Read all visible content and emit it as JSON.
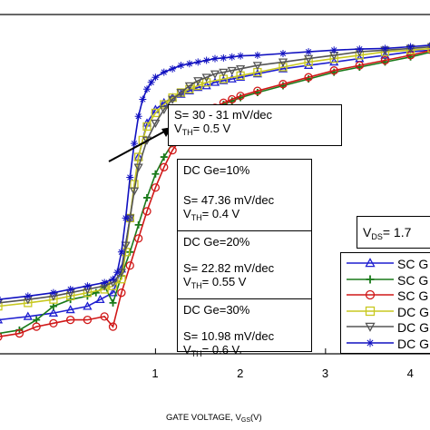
{
  "chart_data": {
    "type": "line",
    "title": "",
    "xlabel": "GATE VOLTAGE, V",
    "xlabel_sub": "GS",
    "xlabel_unit": "(V)",
    "ylabel": "",
    "xlim": [
      -0.85,
      4.25
    ],
    "ylim": [
      0,
      1
    ],
    "x_ticks": [
      1,
      2,
      3,
      4
    ],
    "grid": false,
    "legend_placement": "bottom-right",
    "series": [
      {
        "name": "SC G",
        "color": "#1f1fd0",
        "marker": "triangle-up",
        "x": [
          -0.85,
          -0.5,
          -0.2,
          0.0,
          0.2,
          0.35,
          0.5,
          0.6,
          0.7,
          0.8,
          0.9,
          1.0,
          1.1,
          1.2,
          1.3,
          1.4,
          1.5,
          1.6,
          1.7,
          1.8,
          1.9,
          2.0,
          2.2,
          2.5,
          2.8,
          3.1,
          3.4,
          3.7,
          4.0,
          4.25
        ],
        "y": [
          0.1,
          0.11,
          0.12,
          0.13,
          0.14,
          0.16,
          0.18,
          0.25,
          0.4,
          0.58,
          0.68,
          0.72,
          0.74,
          0.755,
          0.765,
          0.775,
          0.785,
          0.79,
          0.8,
          0.805,
          0.81,
          0.815,
          0.825,
          0.84,
          0.85,
          0.86,
          0.87,
          0.88,
          0.89,
          0.895
        ]
      },
      {
        "name": "SC G",
        "color": "#1a7a1a",
        "marker": "plus",
        "x": [
          -0.85,
          -0.6,
          -0.4,
          -0.2,
          0.0,
          0.2,
          0.3,
          0.4,
          0.5,
          0.6,
          0.7,
          0.8,
          0.9,
          1.0,
          1.1,
          1.2,
          1.3,
          1.4,
          1.5,
          1.6,
          1.7,
          1.8,
          1.9,
          2.0,
          2.2,
          2.5,
          2.8,
          3.1,
          3.4,
          3.7,
          4.0,
          4.25
        ],
        "y": [
          0.06,
          0.07,
          0.1,
          0.14,
          0.16,
          0.17,
          0.18,
          0.2,
          0.15,
          0.23,
          0.3,
          0.38,
          0.46,
          0.53,
          0.58,
          0.62,
          0.65,
          0.675,
          0.695,
          0.71,
          0.725,
          0.735,
          0.745,
          0.755,
          0.77,
          0.79,
          0.81,
          0.83,
          0.845,
          0.86,
          0.875,
          0.89
        ]
      },
      {
        "name": "SC G",
        "color": "#d01818",
        "marker": "circle",
        "x": [
          -0.85,
          -0.6,
          -0.4,
          -0.2,
          0.0,
          0.2,
          0.4,
          0.5,
          0.6,
          0.7,
          0.8,
          0.9,
          1.0,
          1.1,
          1.2,
          1.3,
          1.4,
          1.5,
          1.6,
          1.7,
          1.8,
          1.9,
          2.0,
          2.2,
          2.5,
          2.8,
          3.1,
          3.4,
          3.7,
          4.0,
          4.25
        ],
        "y": [
          0.05,
          0.06,
          0.08,
          0.09,
          0.1,
          0.1,
          0.11,
          0.08,
          0.18,
          0.26,
          0.34,
          0.42,
          0.49,
          0.55,
          0.6,
          0.635,
          0.665,
          0.69,
          0.71,
          0.725,
          0.74,
          0.75,
          0.76,
          0.775,
          0.795,
          0.815,
          0.835,
          0.85,
          0.865,
          0.88,
          0.895
        ]
      },
      {
        "name": "DC G",
        "color": "#c8c820",
        "marker": "square",
        "x": [
          -0.85,
          -0.5,
          -0.2,
          0.0,
          0.2,
          0.4,
          0.5,
          0.6,
          0.65,
          0.7,
          0.75,
          0.8,
          0.85,
          0.9,
          1.0,
          1.1,
          1.2,
          1.3,
          1.4,
          1.5,
          1.6,
          1.8,
          2.0,
          2.2,
          2.5,
          2.8,
          3.1,
          3.4,
          3.7,
          4.0,
          4.25
        ],
        "y": [
          0.14,
          0.15,
          0.16,
          0.17,
          0.18,
          0.19,
          0.2,
          0.22,
          0.3,
          0.4,
          0.5,
          0.58,
          0.63,
          0.67,
          0.71,
          0.735,
          0.755,
          0.77,
          0.78,
          0.79,
          0.8,
          0.81,
          0.82,
          0.83,
          0.845,
          0.86,
          0.87,
          0.88,
          0.89,
          0.895,
          0.9
        ]
      },
      {
        "name": "DC G",
        "color": "#555555",
        "marker": "triangle-down",
        "x": [
          -0.85,
          -0.5,
          -0.2,
          0.0,
          0.2,
          0.4,
          0.5,
          0.6,
          0.65,
          0.7,
          0.75,
          0.8,
          0.9,
          1.0,
          1.1,
          1.2,
          1.3,
          1.4,
          1.5,
          1.6,
          1.7,
          1.8,
          1.9,
          2.0,
          2.2,
          2.5,
          2.8,
          3.1,
          3.4,
          3.7,
          4.0,
          4.25
        ],
        "y": [
          0.15,
          0.16,
          0.17,
          0.18,
          0.19,
          0.2,
          0.21,
          0.24,
          0.32,
          0.4,
          0.48,
          0.55,
          0.63,
          0.68,
          0.72,
          0.75,
          0.77,
          0.79,
          0.805,
          0.815,
          0.825,
          0.83,
          0.835,
          0.84,
          0.85,
          0.86,
          0.87,
          0.88,
          0.89,
          0.895,
          0.9,
          0.905
        ]
      },
      {
        "name": "DC G",
        "color": "#1010c0",
        "marker": "star",
        "x": [
          -0.85,
          -0.5,
          -0.2,
          0.0,
          0.2,
          0.4,
          0.5,
          0.55,
          0.6,
          0.65,
          0.7,
          0.75,
          0.8,
          0.85,
          0.9,
          0.95,
          1.0,
          1.1,
          1.2,
          1.3,
          1.4,
          1.5,
          1.6,
          1.7,
          1.8,
          1.9,
          2.0,
          2.2,
          2.5,
          2.8,
          3.1,
          3.4,
          3.7,
          4.0,
          4.25
        ],
        "y": [
          0.16,
          0.17,
          0.18,
          0.19,
          0.2,
          0.21,
          0.22,
          0.24,
          0.3,
          0.4,
          0.52,
          0.62,
          0.7,
          0.75,
          0.78,
          0.8,
          0.815,
          0.83,
          0.84,
          0.85,
          0.855,
          0.86,
          0.865,
          0.87,
          0.872,
          0.875,
          0.878,
          0.88,
          0.885,
          0.89,
          0.895,
          0.898,
          0.9,
          0.905,
          0.91
        ]
      }
    ],
    "annotations": [
      {
        "id": "ann1",
        "lines": [
          {
            "text": "S= 30 - 31 mV/dec"
          },
          {
            "text": "V",
            "sub": "TH",
            "rest": "= 0.5 V"
          }
        ]
      },
      {
        "id": "ann2",
        "groups": [
          {
            "title": "DC Ge=10%",
            "s": "S= 47.36 mV/dec",
            "vth_rest": "= 0.4 V"
          },
          {
            "title": "DC Ge=20%",
            "s": "S= 22.82 mV/dec",
            "vth_rest": "= 0.55 V"
          },
          {
            "title": "DC Ge=30%",
            "s": "S= 10.98 mV/dec",
            "vth_rest": "= 0.6 V"
          }
        ],
        "vth_main": "V",
        "vth_sub": "TH"
      },
      {
        "id": "vds",
        "main": "V",
        "sub": "DS",
        "rest": "= 1.7"
      }
    ]
  }
}
